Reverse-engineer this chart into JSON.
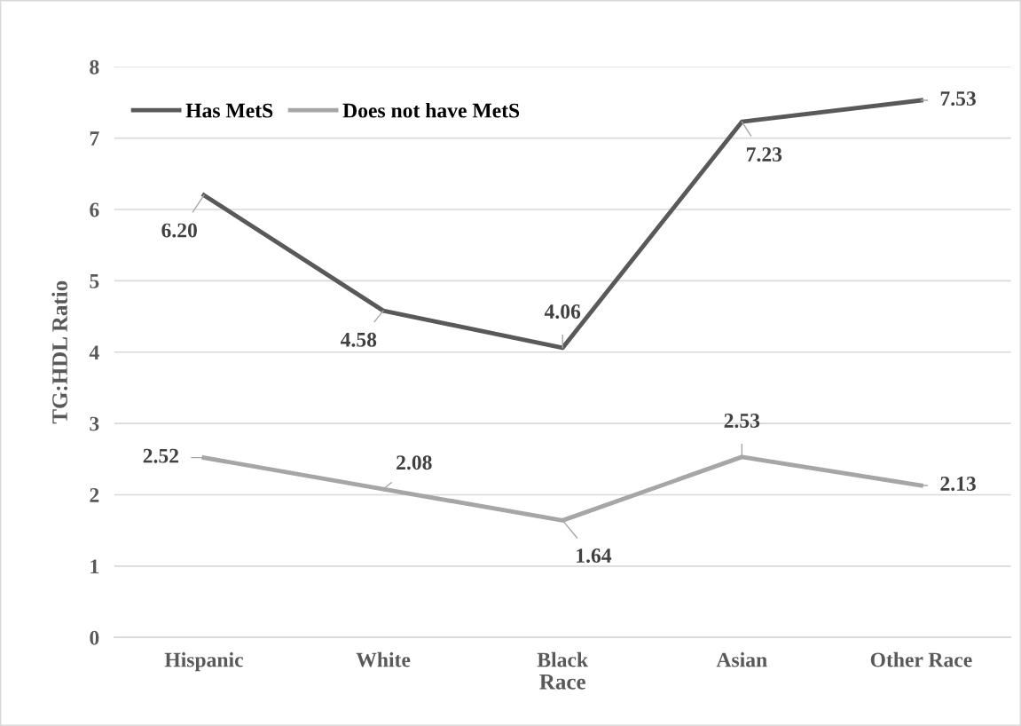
{
  "chart_data": {
    "type": "line",
    "xlabel": "Race",
    "ylabel": "TG:HDL Ratio",
    "categories": [
      "Hispanic",
      "White",
      "Black",
      "Asian",
      "Other Race"
    ],
    "series": [
      {
        "name": "Has MetS",
        "color": "#595959",
        "values": [
          6.2,
          4.58,
          4.06,
          7.23,
          7.53
        ],
        "value_labels": [
          "6.20",
          "4.58",
          "4.06",
          "7.23",
          "7.53"
        ]
      },
      {
        "name": "Does not have MetS",
        "color": "#a6a6a6",
        "values": [
          2.52,
          2.08,
          1.64,
          2.53,
          2.13
        ],
        "value_labels": [
          "2.52",
          "2.08",
          "1.64",
          "2.53",
          "2.13"
        ]
      }
    ],
    "ylim": [
      0,
      8
    ],
    "yticks": [
      0,
      1,
      2,
      3,
      4,
      5,
      6,
      7,
      8
    ],
    "grid": "y",
    "legend": "top left",
    "marker": "none",
    "line_style": "solid"
  }
}
